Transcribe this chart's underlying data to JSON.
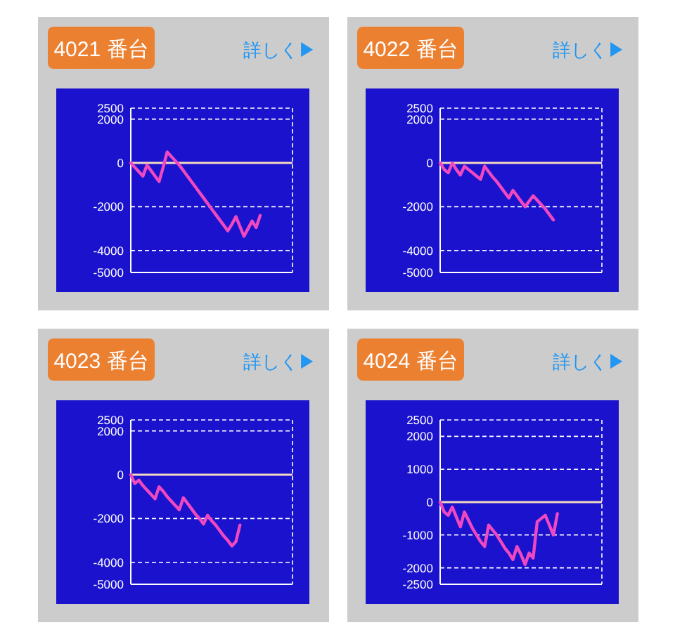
{
  "chart_data": [
    {
      "type": "line",
      "title": "4021 番台",
      "annotations": [
        "詳しく▶"
      ],
      "color": "#f048c0",
      "ylim": [
        -5000,
        2500
      ],
      "yticks": [
        2500,
        2000,
        0,
        -2000,
        -4000,
        -5000
      ],
      "grid": "y",
      "tick_labels": "y",
      "ref_lines": [
        {
          "axis": "y",
          "value": 0,
          "color": "#f3d9c0"
        }
      ],
      "categories": [
        null,
        null,
        null,
        null,
        null,
        null,
        null,
        null,
        null,
        null,
        null,
        null,
        null,
        null,
        null,
        null,
        null,
        null,
        null,
        null,
        null,
        null,
        null,
        null,
        null,
        null,
        null,
        null,
        null,
        null,
        null,
        null,
        null,
        null,
        null,
        null,
        null,
        null,
        null,
        null,
        null
      ],
      "values": [
        0,
        -200,
        -400,
        -600,
        -100,
        -350,
        -600,
        -850,
        -200,
        500,
        300,
        100,
        -100,
        -350,
        -600,
        -850,
        -1100,
        -1350,
        -1600,
        -1850,
        -2100,
        -2350,
        -2600,
        -2850,
        -3100,
        -2800,
        -2450,
        -2900,
        -3350,
        -3000,
        -2650,
        -2950,
        -2400,
        null,
        null,
        null,
        null,
        null,
        null,
        null,
        null
      ]
    },
    {
      "type": "line",
      "title": "4022 番台",
      "annotations": [
        "詳しく▶"
      ],
      "color": "#f048c0",
      "ylim": [
        -5000,
        2500
      ],
      "yticks": [
        2500,
        2000,
        0,
        -2000,
        -4000,
        -5000
      ],
      "grid": "y",
      "tick_labels": "y",
      "ref_lines": [
        {
          "axis": "y",
          "value": 0,
          "color": "#f3d9c0"
        }
      ],
      "categories": [
        null,
        null,
        null,
        null,
        null,
        null,
        null,
        null,
        null,
        null,
        null,
        null,
        null,
        null,
        null,
        null,
        null,
        null,
        null,
        null,
        null,
        null,
        null,
        null,
        null,
        null,
        null,
        null,
        null,
        null,
        null,
        null,
        null,
        null,
        null,
        null,
        null,
        null,
        null,
        null,
        null
      ],
      "values": [
        0,
        -300,
        -450,
        0,
        -300,
        -550,
        -150,
        -300,
        -450,
        -600,
        -750,
        -150,
        -400,
        -650,
        -850,
        -1100,
        -1350,
        -1600,
        -1250,
        -1500,
        -1750,
        -2000,
        -1750,
        -1500,
        -1700,
        -1900,
        -2100,
        -2350,
        -2600,
        null,
        null,
        null,
        null,
        null,
        null,
        null,
        null,
        null,
        null,
        null,
        null
      ]
    },
    {
      "type": "line",
      "title": "4023 番台",
      "annotations": [
        "詳しく▶"
      ],
      "color": "#f048c0",
      "ylim": [
        -5000,
        2500
      ],
      "yticks": [
        2500,
        2000,
        0,
        -2000,
        -4000,
        -5000
      ],
      "grid": "y",
      "tick_labels": "y",
      "ref_lines": [
        {
          "axis": "y",
          "value": 0,
          "color": "#f3d9c0"
        }
      ],
      "categories": [
        null,
        null,
        null,
        null,
        null,
        null,
        null,
        null,
        null,
        null,
        null,
        null,
        null,
        null,
        null,
        null,
        null,
        null,
        null,
        null,
        null,
        null,
        null,
        null,
        null,
        null,
        null,
        null,
        null,
        null,
        null,
        null,
        null,
        null,
        null,
        null,
        null,
        null,
        null,
        null,
        null
      ],
      "values": [
        0,
        -400,
        -250,
        -500,
        -700,
        -900,
        -1100,
        -550,
        -750,
        -1000,
        -1200,
        -1400,
        -1600,
        -1050,
        -1300,
        -1550,
        -1800,
        -2000,
        -2250,
        -1850,
        -2100,
        -2300,
        -2550,
        -2800,
        -3000,
        -3250,
        -3050,
        -2300,
        null,
        null,
        null,
        null,
        null,
        null,
        null,
        null,
        null,
        null,
        null,
        null,
        null
      ]
    },
    {
      "type": "line",
      "title": "4024 番台",
      "annotations": [
        "詳しく▶"
      ],
      "color": "#f048c0",
      "ylim": [
        -2500,
        2500
      ],
      "yticks": [
        2500,
        2000,
        1000,
        0,
        -1000,
        -2000,
        -2500
      ],
      "grid": "y",
      "tick_labels": "y",
      "ref_lines": [
        {
          "axis": "y",
          "value": 0,
          "color": "#f3d9c0"
        }
      ],
      "categories": [
        null,
        null,
        null,
        null,
        null,
        null,
        null,
        null,
        null,
        null,
        null,
        null,
        null,
        null,
        null,
        null,
        null,
        null,
        null,
        null,
        null,
        null,
        null,
        null,
        null,
        null,
        null,
        null,
        null,
        null,
        null,
        null,
        null,
        null,
        null,
        null,
        null,
        null,
        null,
        null,
        null
      ],
      "values": [
        0,
        -300,
        -400,
        -150,
        -450,
        -750,
        -300,
        -550,
        -800,
        -1000,
        -1200,
        -1350,
        -700,
        -850,
        -1000,
        -1200,
        -1400,
        -1550,
        -1750,
        -1350,
        -1600,
        -1900,
        -1550,
        -1700,
        -600,
        -500,
        -400,
        -700,
        -1000,
        -350,
        null,
        null,
        null,
        null,
        null,
        null,
        null,
        null,
        null,
        null,
        null
      ]
    }
  ]
}
